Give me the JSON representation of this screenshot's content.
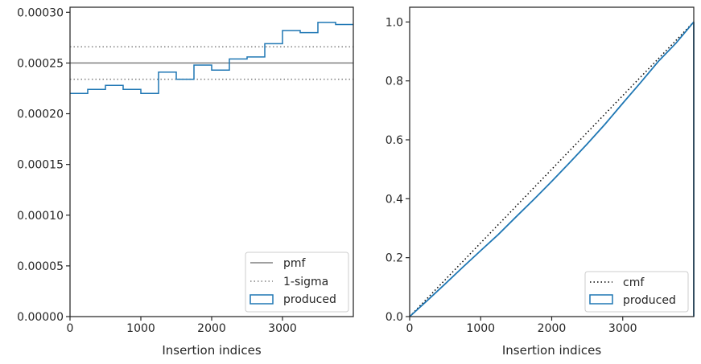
{
  "chart_data": [
    {
      "type": "step",
      "xlabel": "Insertion indices",
      "ylabel": "",
      "xlim": [
        0,
        4000
      ],
      "ylim": [
        0,
        0.000305
      ],
      "xticks": [
        0,
        1000,
        2000,
        3000
      ],
      "xtick_labels": [
        "0",
        "1000",
        "2000",
        "3000"
      ],
      "yticks": [
        0,
        5e-05,
        0.0001,
        0.00015,
        0.0002,
        0.00025,
        0.0003
      ],
      "ytick_labels": [
        "0.00000",
        "0.00005",
        "0.00010",
        "0.00015",
        "0.00020",
        "0.00025",
        "0.00030"
      ],
      "grid": false,
      "legend_position": "lower-right",
      "legend": [
        "pmf",
        "1-sigma",
        "produced"
      ],
      "bin_edges": [
        0,
        250,
        500,
        750,
        1000,
        1250,
        1500,
        1750,
        2000,
        2250,
        2500,
        2750,
        3000,
        3250,
        3500,
        3750,
        4000
      ],
      "series": [
        {
          "name": "produced",
          "kind": "step-histogram",
          "color": "#1f77b4",
          "values": [
            0.00022,
            0.000224,
            0.000228,
            0.000224,
            0.00022,
            0.000241,
            0.000234,
            0.000248,
            0.000243,
            0.000254,
            0.000256,
            0.000269,
            0.000282,
            0.00028,
            0.00029,
            0.000288
          ]
        }
      ],
      "hlines": [
        {
          "name": "pmf",
          "y": 0.00025,
          "style": "solid",
          "color": "#808080"
        },
        {
          "name": "1-sigma",
          "y": 0.000266,
          "style": "dotted",
          "color": "#808080"
        },
        {
          "name": "1-sigma",
          "y": 0.000234,
          "style": "dotted",
          "color": "#808080"
        }
      ]
    },
    {
      "type": "line",
      "xlabel": "Insertion indices",
      "ylabel": "",
      "xlim": [
        0,
        4000
      ],
      "ylim": [
        0,
        1.05
      ],
      "xticks": [
        0,
        1000,
        2000,
        3000
      ],
      "xtick_labels": [
        "0",
        "1000",
        "2000",
        "3000"
      ],
      "yticks": [
        0,
        0.2,
        0.4,
        0.6,
        0.8,
        1.0
      ],
      "ytick_labels": [
        "0.0",
        "0.2",
        "0.4",
        "0.6",
        "0.8",
        "1.0"
      ],
      "grid": false,
      "legend_position": "lower-right",
      "legend": [
        "cmf",
        "produced"
      ],
      "series": [
        {
          "name": "cmf",
          "style": "dotted",
          "color": "#000000",
          "x": [
            0,
            4000
          ],
          "y": [
            0,
            1.0
          ]
        },
        {
          "name": "produced",
          "style": "solid",
          "color": "#1f77b4",
          "x": [
            0,
            250,
            500,
            750,
            1000,
            1250,
            1500,
            1750,
            2000,
            2250,
            2500,
            2750,
            3000,
            3250,
            3500,
            3750,
            4000
          ],
          "y": [
            0,
            0.055,
            0.111,
            0.168,
            0.224,
            0.279,
            0.339,
            0.398,
            0.459,
            0.522,
            0.586,
            0.653,
            0.724,
            0.794,
            0.866,
            0.928,
            1.0
          ]
        }
      ]
    }
  ],
  "colors": {
    "produced": "#1f77b4",
    "pmf": "#808080",
    "sigma": "#808080",
    "cmf": "#000000",
    "axes": "#262626"
  }
}
